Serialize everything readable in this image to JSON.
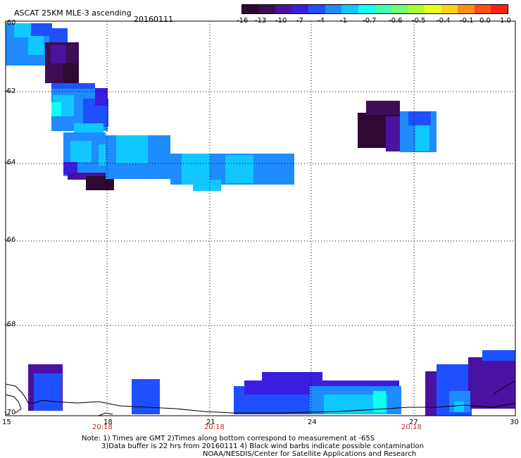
{
  "title": "ASCAT 25KM MLE-3 ascending",
  "date": "20160111",
  "colorbar": {
    "colors": [
      "#2e0a32",
      "#3c0f55",
      "#4a12a0",
      "#3a1ee0",
      "#1e50ff",
      "#1e8cff",
      "#10c8ff",
      "#10ffef",
      "#40ffb0",
      "#70ff70",
      "#a8ff30",
      "#e8ff18",
      "#ffd018",
      "#ff9010",
      "#ff5010",
      "#ff2010"
    ],
    "labels": [
      "-16",
      "-13",
      "-10",
      "-7",
      "-4",
      "-1",
      "-0.7",
      "-0.6",
      "-0.5",
      "-0.4",
      "-0.1",
      "0.0",
      "1.0"
    ]
  },
  "lat_labels": [
    "-60",
    "-62",
    "-64",
    "-66",
    "-68",
    "-70"
  ],
  "lon_labels": [
    "15",
    "18",
    "21",
    "24",
    "27",
    "30"
  ],
  "time_labels": [
    "20:18",
    "20:18",
    "20:18"
  ],
  "notes": {
    "line1": "Note: 1) Times are GMT 2)Times along bottom correspond to measurement at -65S",
    "line2": "3)Data buffer is 22 hrs from 20160111 4) Black wind barbs indicate possible contamination",
    "line3": "NOAA/NESDIS/Center for Satellite Applications and Research"
  }
}
